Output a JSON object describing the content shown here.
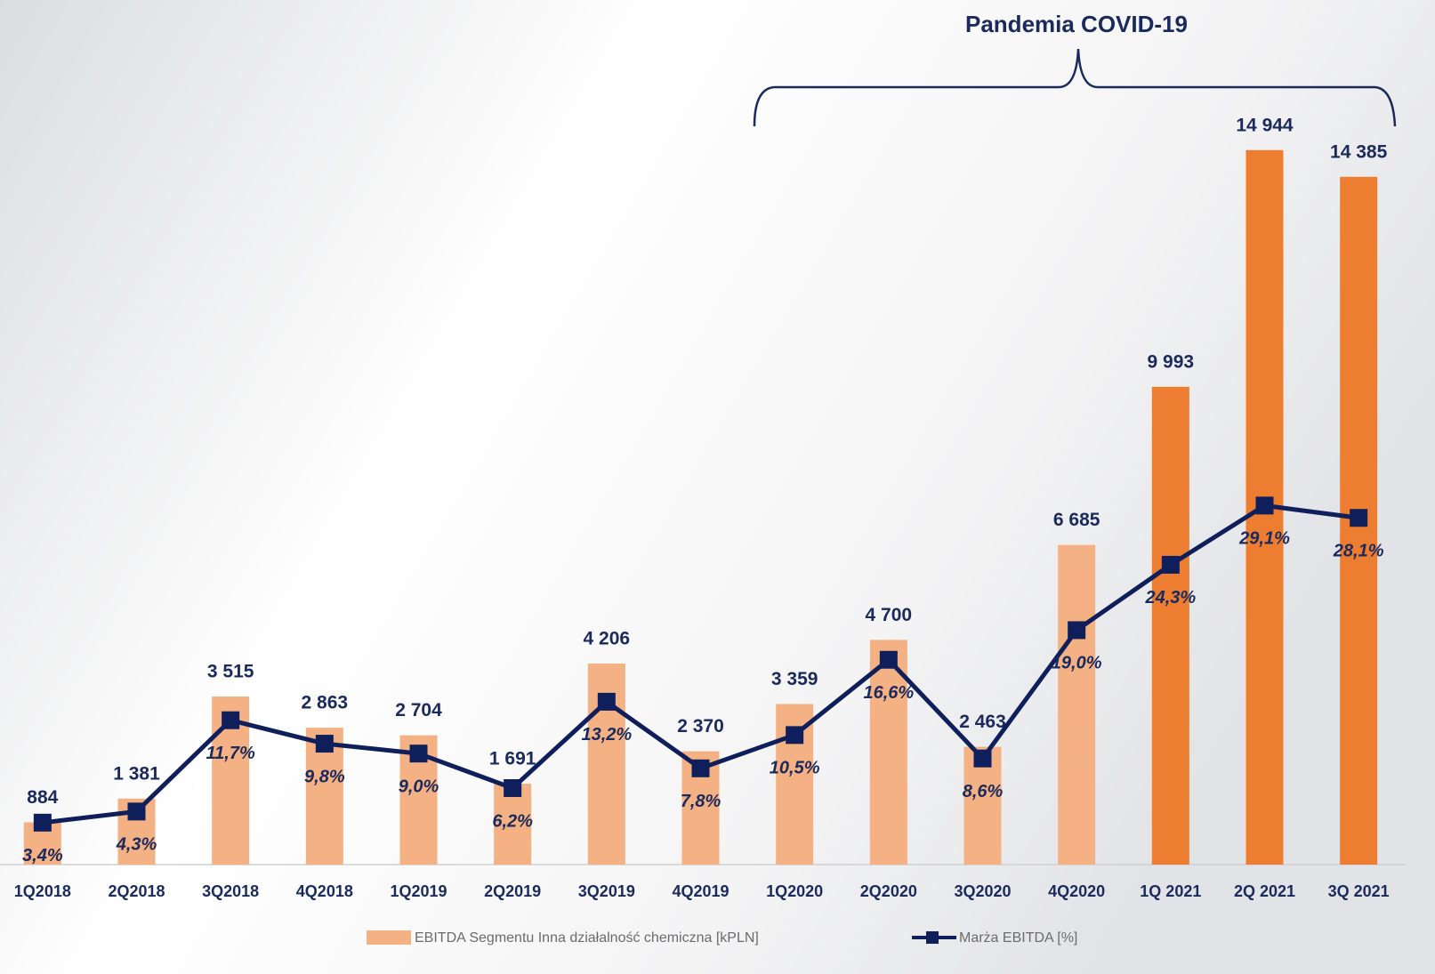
{
  "chart_data": {
    "type": "bar-line",
    "annotation": "Pandemia COVID-19",
    "categories": [
      "1Q2018",
      "2Q2018",
      "3Q2018",
      "4Q2018",
      "1Q2019",
      "2Q2019",
      "3Q2019",
      "4Q2019",
      "1Q2020",
      "2Q2020",
      "3Q2020",
      "4Q2020",
      "1Q 2021",
      "2Q 2021",
      "3Q 2021"
    ],
    "series": [
      {
        "name": "EBITDA Segmentu Inna działalność chemiczna [kPLN]",
        "color": "#f4b183",
        "colors": [
          "#f4b183",
          "#f4b183",
          "#f4b183",
          "#f4b183",
          "#f4b183",
          "#f4b183",
          "#f4b183",
          "#f4b183",
          "#f4b183",
          "#f4b183",
          "#f4b183",
          "#f4b183",
          "#ed7d31",
          "#ed7d31",
          "#ed7d31"
        ],
        "values": [
          884,
          1381,
          3515,
          2863,
          2704,
          1691,
          4206,
          2370,
          3359,
          4700,
          2463,
          6685,
          9993,
          14944,
          14385
        ],
        "value_labels": [
          "884",
          "1 381",
          "3 515",
          "2 863",
          "2 704",
          "1 691",
          "4 206",
          "2 370",
          "3 359",
          "4 700",
          "2 463",
          "6 685",
          "9 993",
          "14 944",
          "14 385"
        ]
      },
      {
        "name": "Marża EBITDA [%]",
        "color": "#0f1f5c",
        "axis": "y2",
        "values": [
          3.4,
          4.3,
          11.7,
          9.8,
          9.0,
          6.2,
          13.2,
          7.8,
          10.5,
          16.6,
          8.6,
          19.0,
          24.3,
          29.1,
          28.1
        ],
        "value_labels": [
          "3,4%",
          "4,3%",
          "11,7%",
          "9,8%",
          "9,0%",
          "6,2%",
          "13,2%",
          "7,8%",
          "10,5%",
          "16,6%",
          "8,6%",
          "19,0%",
          "24,3%",
          "29,1%",
          "28,1%"
        ]
      }
    ],
    "ylim": [
      0,
      16000
    ],
    "y2lim": [
      0,
      62
    ]
  }
}
